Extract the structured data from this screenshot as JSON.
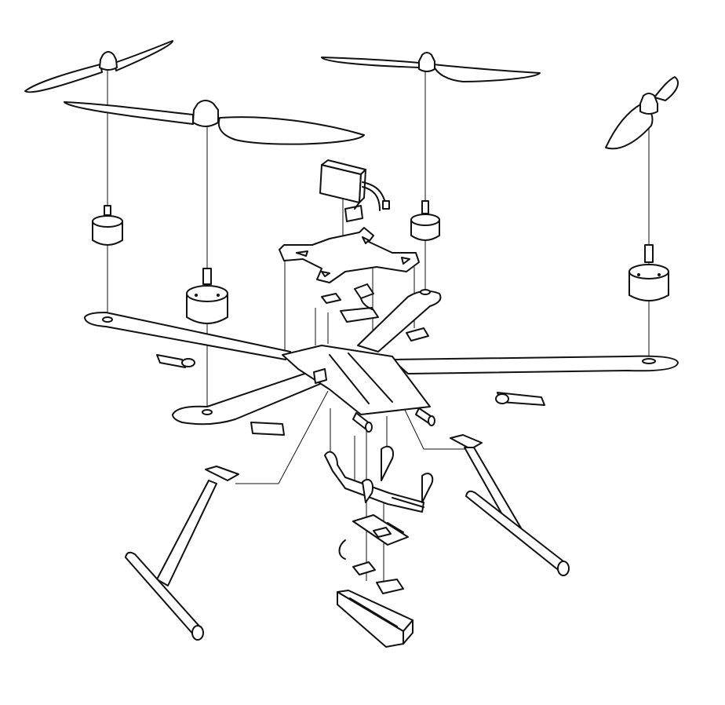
{
  "diagram": {
    "kind": "exploded-view line drawing",
    "subject_icon": "quadcopter-drone-icon",
    "line_color": "#111111",
    "background_color": "#ffffff",
    "parts": [
      {
        "name": "propeller",
        "count": 4
      },
      {
        "name": "motor",
        "count": 4
      },
      {
        "name": "battery",
        "count": 1
      },
      {
        "name": "top-plate",
        "count": 1
      },
      {
        "name": "arm",
        "count": 4
      },
      {
        "name": "esc",
        "count": 4
      },
      {
        "name": "center-plate",
        "count": 1
      },
      {
        "name": "standoff",
        "count": 2
      },
      {
        "name": "gimbal-mount",
        "count": 1
      },
      {
        "name": "flight-controller-board",
        "count": 1
      },
      {
        "name": "small-board",
        "count": 2
      },
      {
        "name": "tray",
        "count": 1
      },
      {
        "name": "landing-leg",
        "count": 2
      }
    ]
  }
}
